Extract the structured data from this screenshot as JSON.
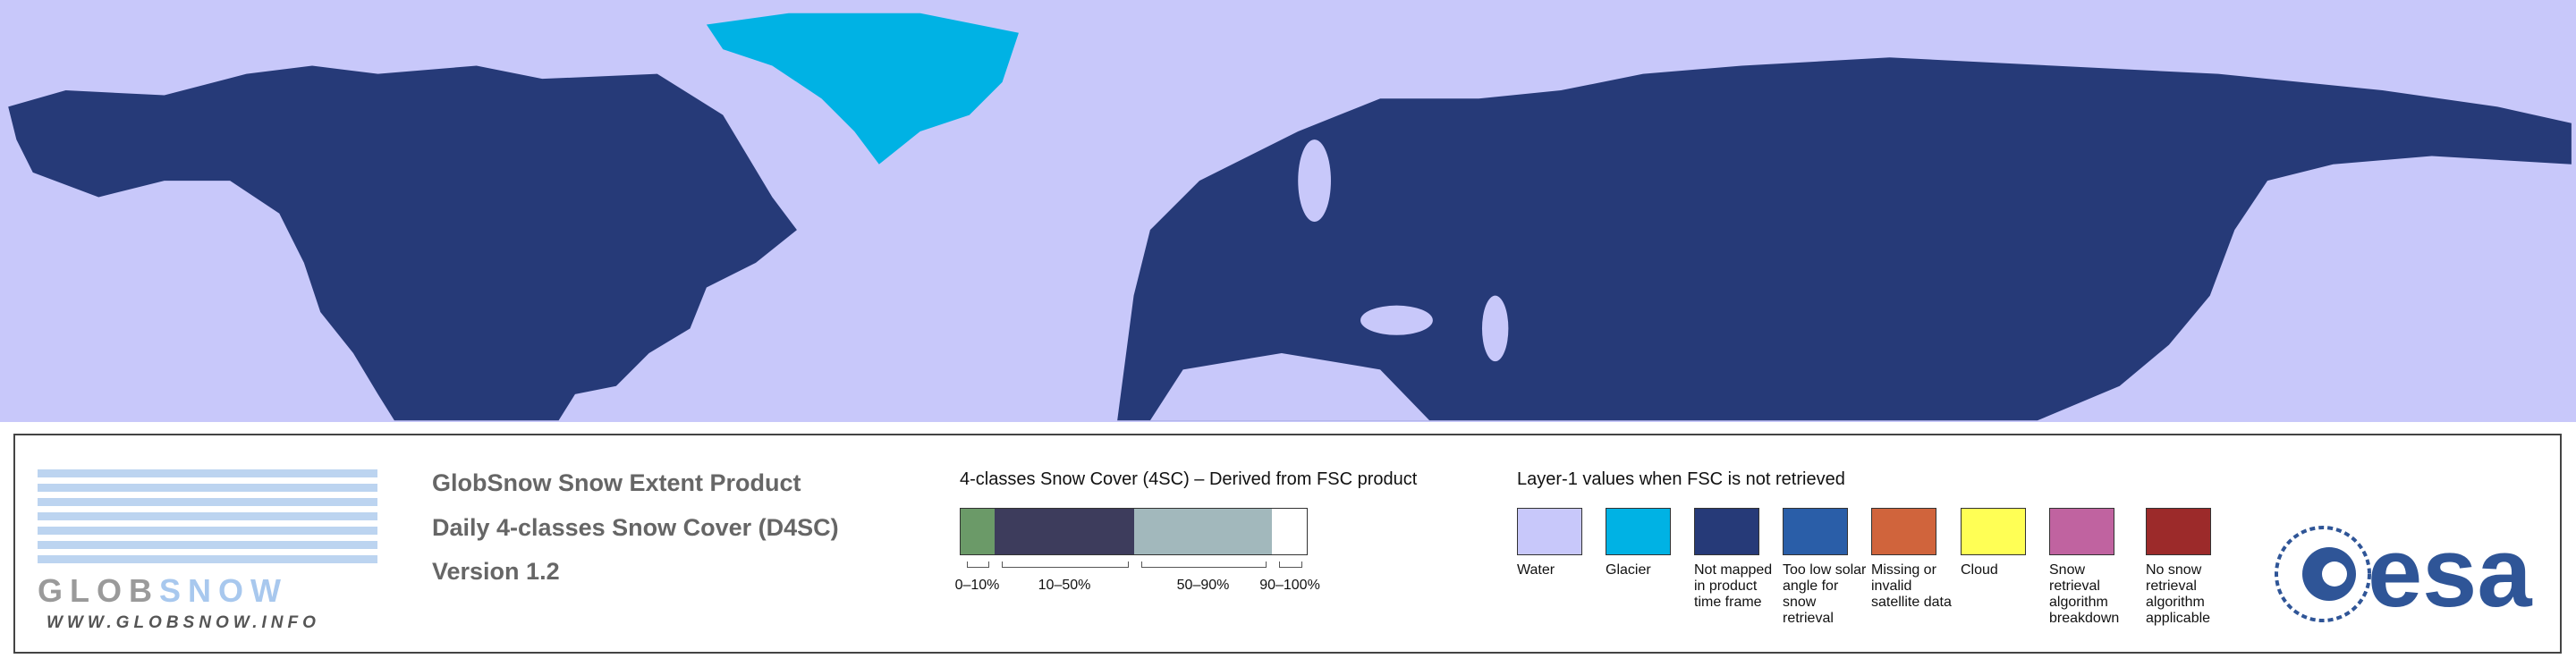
{
  "logo": {
    "parts": [
      "GLOB",
      "SNOW"
    ],
    "url": "WWW.GLOBSNOW.INFO"
  },
  "product": {
    "lines": [
      "GlobSnow Snow Extent Product",
      "Daily 4-classes Snow Cover (D4SC)",
      "Version 1.2"
    ]
  },
  "snow_cover_legend": {
    "title": "4-classes Snow Cover (4SC) – Derived from FSC product",
    "classes": [
      {
        "label": "0–10%",
        "color": "#6b9a68"
      },
      {
        "label": "10–50%",
        "color": "#3d3c5c"
      },
      {
        "label": "50–90%",
        "color": "#a2b8bc"
      },
      {
        "label": "90–100%",
        "color": "#ffffff"
      }
    ]
  },
  "layer1_legend": {
    "title": "Layer-1 values when FSC is not retrieved",
    "items": [
      {
        "label": "Water",
        "color": "#c8c8fa"
      },
      {
        "label": "Glacier",
        "color": "#00b2e4"
      },
      {
        "label": "Not mapped in product time frame",
        "color": "#263a78"
      },
      {
        "label": "Too low solar angle for snow retrieval",
        "color": "#2a5ea8"
      },
      {
        "label": "Missing or invalid satellite data",
        "color": "#d0643c"
      },
      {
        "label": "Cloud",
        "color": "#ffff55"
      },
      {
        "label": "Snow retrieval algorithm breakdown",
        "color": "#c063a0"
      },
      {
        "label": "No snow retrieval algorithm applicable",
        "color": "#9c2a2a"
      }
    ]
  },
  "agency": {
    "name": "esa"
  }
}
